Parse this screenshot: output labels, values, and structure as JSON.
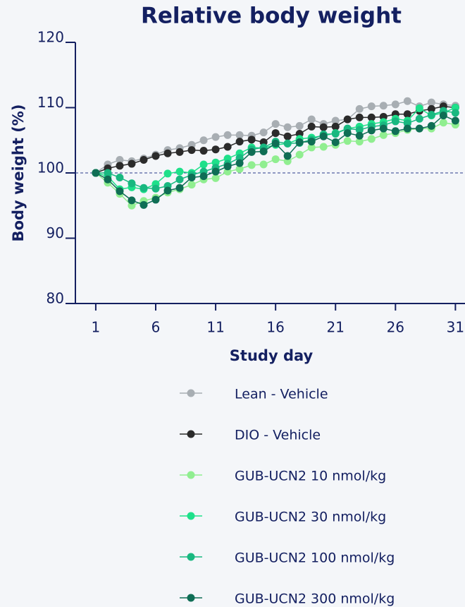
{
  "chart_data": {
    "type": "line",
    "title": "Relative body weight",
    "xlabel": "Study day",
    "ylabel": "Body weight (%)",
    "x": [
      1,
      2,
      3,
      4,
      5,
      6,
      7,
      8,
      9,
      10,
      11,
      12,
      13,
      14,
      15,
      16,
      17,
      18,
      19,
      20,
      21,
      22,
      23,
      24,
      25,
      26,
      27,
      28,
      29,
      30,
      31
    ],
    "xlim": [
      -0.7,
      31.8
    ],
    "xticks": [
      1,
      6,
      11,
      16,
      21,
      26,
      31
    ],
    "ylim": [
      80,
      120
    ],
    "yticks": [
      80,
      90,
      100,
      110,
      120
    ],
    "reference_line": 100,
    "series": [
      {
        "name": "Lean - Vehicle",
        "color": "#a8aeb3",
        "values": [
          100,
          101.3,
          102,
          101.8,
          102.2,
          102.8,
          103.5,
          103.8,
          104.3,
          105,
          105.5,
          105.8,
          105.8,
          105.7,
          106.2,
          107.5,
          107,
          107.2,
          108.2,
          107.5,
          108,
          108.2,
          109.8,
          110.2,
          110.3,
          110.5,
          111,
          110.2,
          110.8,
          110.5,
          110.3
        ]
      },
      {
        "name": "DIO - Vehicle",
        "color": "#2b2b2b",
        "values": [
          100,
          100.7,
          101.1,
          101.4,
          102,
          102.6,
          103,
          103.2,
          103.5,
          103.4,
          103.6,
          104,
          104.8,
          105.1,
          104.7,
          106.1,
          105.6,
          106,
          107.1,
          107,
          107.1,
          108.2,
          108.5,
          108.5,
          108.6,
          109,
          109,
          109.5,
          109.8,
          110.2,
          110
        ]
      },
      {
        "name": "GUB-UCN2 10 nmol/kg",
        "color": "#90ee90",
        "values": [
          100,
          98.5,
          96.8,
          95,
          95.7,
          96.2,
          97,
          97.5,
          98.2,
          99,
          99.2,
          100.2,
          100.6,
          101.2,
          101.3,
          102.1,
          101.8,
          102.8,
          103.9,
          104,
          104.3,
          104.9,
          104.8,
          105.2,
          105.8,
          106.1,
          106.6,
          106.8,
          106.8,
          107.7,
          107.4
        ]
      },
      {
        "name": "GUB-UCN2 30 nmol/kg",
        "color": "#1ee08a",
        "values": [
          100,
          99.5,
          97.5,
          97.8,
          97.5,
          98.3,
          99.9,
          100.2,
          100,
          101.3,
          101.6,
          102.2,
          103,
          103.9,
          103.8,
          104.3,
          104.5,
          105.2,
          105.4,
          105.7,
          106.1,
          106.8,
          107.1,
          107.5,
          107.8,
          108.3,
          108,
          109.9,
          108.8,
          109.2,
          110
        ]
      },
      {
        "name": "GUB-UCN2 100 nmol/kg",
        "color": "#19b880",
        "values": [
          100,
          100,
          99.3,
          98.4,
          97.7,
          97.6,
          98,
          99,
          99.7,
          100.2,
          100.8,
          101.4,
          102.3,
          103.6,
          103.9,
          104.8,
          104.5,
          104.6,
          105.1,
          105.9,
          106,
          106.8,
          106.6,
          107.1,
          107.3,
          107.9,
          107.6,
          108.3,
          108.9,
          109.5,
          109.2
        ]
      },
      {
        "name": "GUB-UCN2 300 nmol/kg",
        "color": "#0f6e55",
        "values": [
          100,
          99,
          97.2,
          95.8,
          95.1,
          95.9,
          97.3,
          97.7,
          99.3,
          99.5,
          100.2,
          101,
          101.5,
          103.2,
          103.3,
          104.5,
          102.6,
          104.7,
          104.8,
          105.6,
          104.7,
          106.1,
          105.7,
          106.5,
          106.8,
          106.4,
          106.8,
          106.8,
          107.2,
          108.8,
          108
        ]
      }
    ]
  }
}
